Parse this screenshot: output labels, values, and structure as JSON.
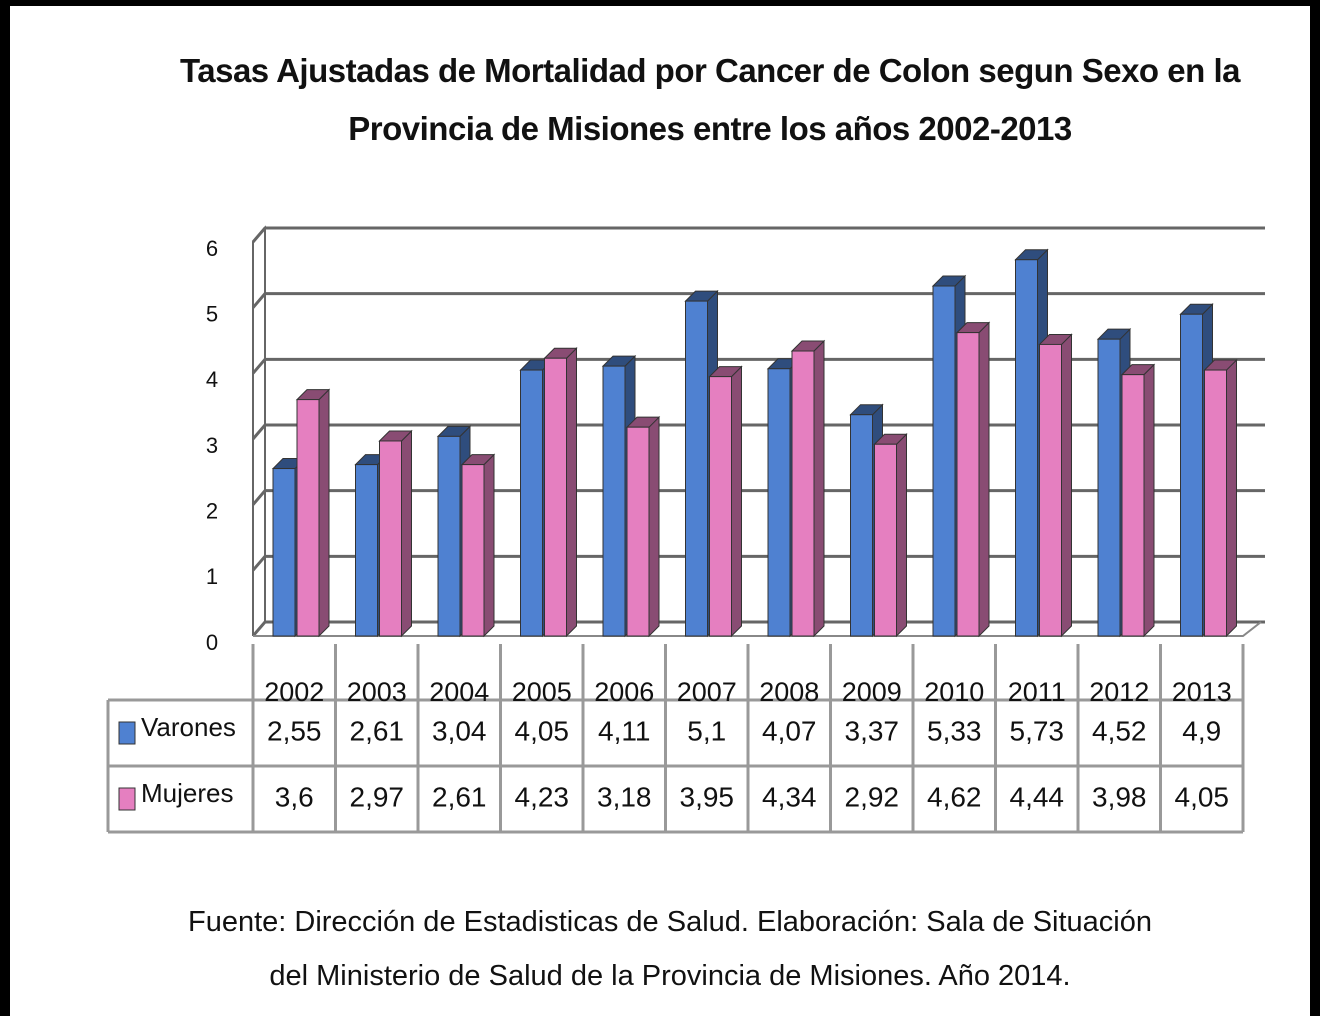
{
  "chart_data": {
    "type": "bar3d",
    "title": "Tasas Ajustadas de Mortalidad por Cancer de Colon segun Sexo en la Provincia de Misiones entre los años 2002-2013",
    "categories": [
      "2002",
      "2003",
      "2004",
      "2005",
      "2006",
      "2007",
      "2008",
      "2009",
      "2010",
      "2011",
      "2012",
      "2013"
    ],
    "series": [
      {
        "name": "Varones",
        "color": "#4f81d1",
        "values": [
          2.55,
          2.61,
          3.04,
          4.05,
          4.11,
          5.1,
          4.07,
          3.37,
          5.33,
          5.73,
          4.52,
          4.9
        ],
        "value_labels": [
          "2,55",
          "2,61",
          "3,04",
          "4,05",
          "4,11",
          "5,1",
          "4,07",
          "3,37",
          "5,33",
          "5,73",
          "4,52",
          "4,9"
        ]
      },
      {
        "name": "Mujeres",
        "color": "#e57fc0",
        "values": [
          3.6,
          2.97,
          2.61,
          4.23,
          3.18,
          3.95,
          4.34,
          2.92,
          4.62,
          4.44,
          3.98,
          4.05
        ],
        "value_labels": [
          "3,6",
          "2,97",
          "2,61",
          "4,23",
          "3,18",
          "3,95",
          "4,34",
          "2,92",
          "4,62",
          "4,44",
          "3,98",
          "4,05"
        ]
      }
    ],
    "ylim": [
      0,
      6
    ],
    "yticks": [
      0,
      1,
      2,
      3,
      4,
      5,
      6
    ],
    "grid": true,
    "source": [
      "Fuente: Dirección de Estadisticas de Salud. Elaboración: Sala de Situación",
      "del Ministerio de Salud de la Provincia de Misiones. Año 2014."
    ]
  }
}
